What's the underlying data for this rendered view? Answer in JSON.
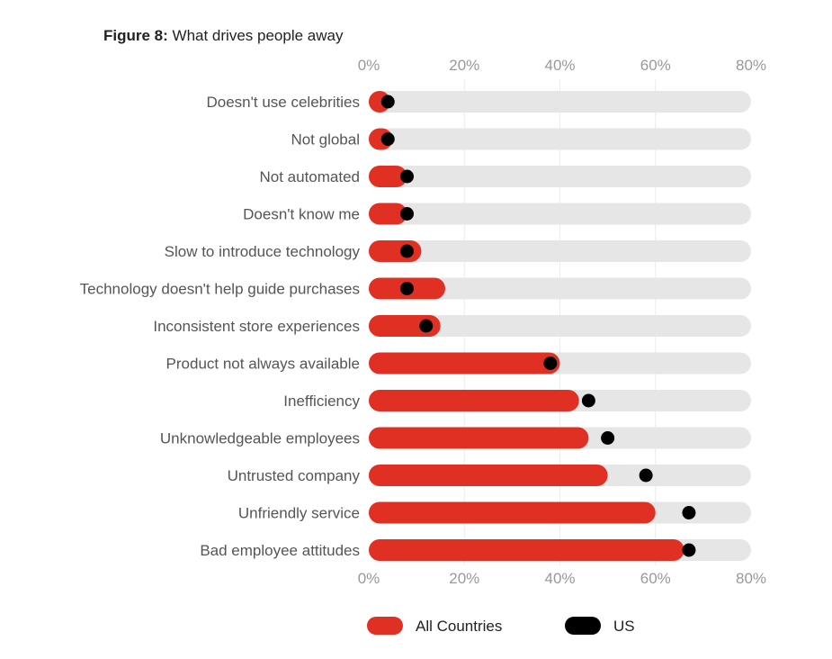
{
  "figure": {
    "label": "Figure 8:",
    "title": "What drives people away"
  },
  "chart_data": {
    "type": "bar",
    "orientation": "horizontal",
    "title": "What drives people away",
    "categories": [
      "Doesn't use celebrities",
      "Not global",
      "Not automated",
      "Doesn't know me",
      "Slow to introduce technology",
      "Technology doesn't help guide purchases",
      "Inconsistent store experiences",
      "Product not always available",
      "Inefficiency",
      "Unknowledgeable employees",
      "Untrusted company",
      "Unfriendly service",
      "Bad employee attitudes"
    ],
    "series": [
      {
        "name": "All Countries",
        "mark": "bar",
        "color": "#e03024",
        "values": [
          4,
          5,
          8,
          8,
          11,
          16,
          15,
          40,
          44,
          46,
          50,
          60,
          66
        ]
      },
      {
        "name": "US",
        "mark": "dot",
        "color": "#000000",
        "values": [
          4,
          4,
          8,
          8,
          8,
          8,
          12,
          38,
          46,
          50,
          58,
          67,
          67
        ]
      }
    ],
    "xlim": [
      0,
      80
    ],
    "xticks": [
      0,
      20,
      40,
      60,
      80
    ],
    "tick_labels": [
      "0%",
      "20%",
      "40%",
      "60%",
      "80%"
    ],
    "x_unit": "%",
    "track_color": "#e6e6e6",
    "grid": true,
    "legend_position": "bottom"
  }
}
